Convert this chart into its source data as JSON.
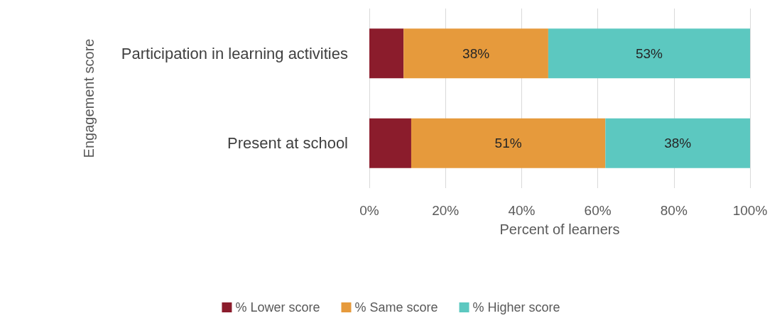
{
  "chart_data": {
    "type": "bar",
    "orientation": "horizontal",
    "stacked": true,
    "xlabel": "Percent of learners",
    "ylabel": "Engagement score",
    "categories": [
      "Participation in learning activities",
      "Present at school"
    ],
    "series": [
      {
        "name": "% Lower score",
        "color": "#8b1c2c",
        "values": [
          9,
          11
        ],
        "value_labels": [
          null,
          null
        ]
      },
      {
        "name": "% Same score",
        "color": "#e69a3c",
        "values": [
          38,
          51
        ],
        "value_labels": [
          "38%",
          "51%"
        ]
      },
      {
        "name": "% Higher score",
        "color": "#5cc8c0",
        "values": [
          53,
          38
        ],
        "value_labels": [
          "53%",
          "38%"
        ]
      }
    ],
    "xlim": [
      0,
      100
    ],
    "xticks": [
      {
        "value": 0,
        "label": "0%"
      },
      {
        "value": 20,
        "label": "20%"
      },
      {
        "value": 40,
        "label": "40%"
      },
      {
        "value": 60,
        "label": "60%"
      },
      {
        "value": 80,
        "label": "80%"
      },
      {
        "value": 100,
        "label": "100%"
      }
    ],
    "grid": "x",
    "legend": "bottom"
  }
}
